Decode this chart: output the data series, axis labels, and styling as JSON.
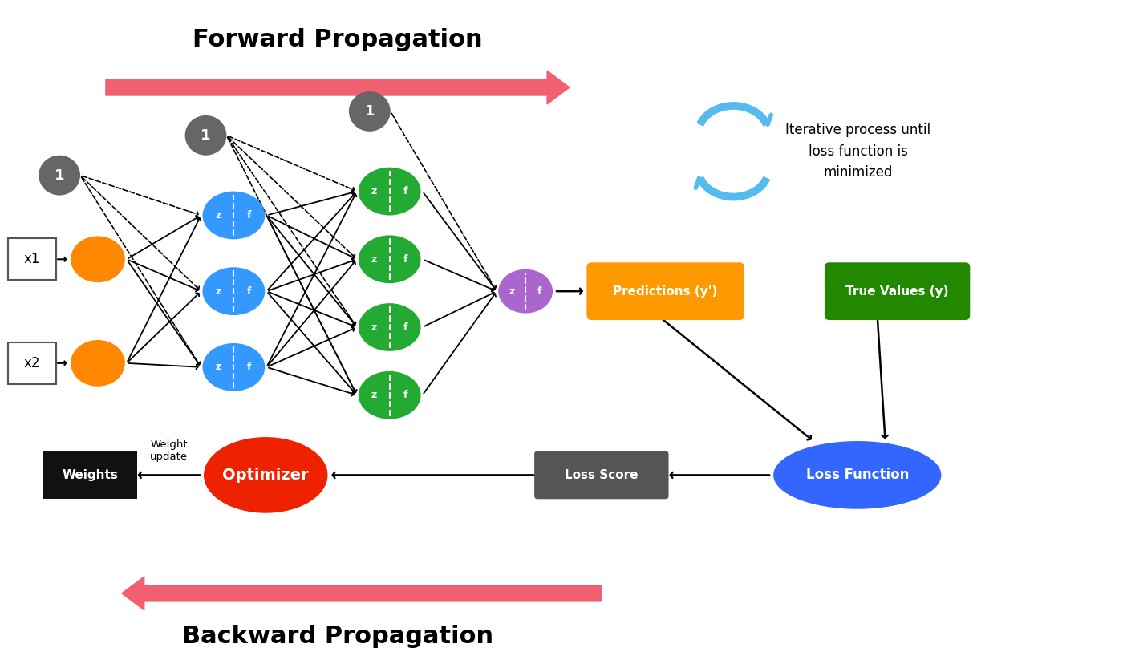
{
  "bg_color": "#ffffff",
  "title_forward": "Forward Propagation",
  "title_backward": "Backward Propagation",
  "arrow_color": "#f06070",
  "iterative_text": "Iterative process until\nloss function is\nminimized",
  "iterative_color": "#55bbee",
  "node_colors": {
    "input": "#ff8800",
    "hidden1": "#3399ff",
    "hidden2": "#22aa33",
    "output": "#aa66cc",
    "bias": "#666666",
    "optimizer": "#ee2200",
    "predictions": "#ff9900",
    "true_values": "#228800",
    "loss_function": "#3366ff",
    "loss_score": "#555555",
    "weights": "#111111"
  }
}
